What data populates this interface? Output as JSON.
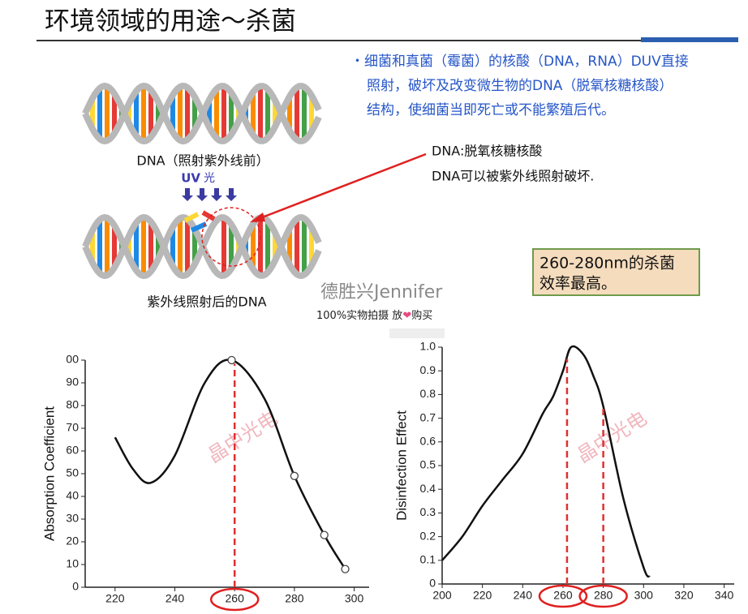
{
  "header": {
    "title": "环境领域的用途～杀菌"
  },
  "bullet": [
    "・细菌和真菌（霉菌）的核酸（DNA，RNA）DUV直接",
    "照射，破坏及改变微生物的DNA（脱氧核糖核酸）",
    "结构，使细菌当即死亡或不能繁殖后代。"
  ],
  "dna": {
    "before": "DNA（照射紫外线前）",
    "uv": "UV",
    "uv_light": "光",
    "after": "紫外线照射后的DNA"
  },
  "note": [
    "DNA:脱氧核糖核酸",
    "DNA可以被紫外线照射破坏."
  ],
  "callout": [
    "260-280nm的杀菌",
    "效率最高。"
  ],
  "watermark": {
    "brand": "德胜兴Jennifer",
    "line_before": "100%实物拍摄 放",
    "heart": "❤",
    "line_after": "购买"
  },
  "chart_watermark": "晶中光电",
  "chart_data": [
    {
      "type": "line",
      "y_label": "Absorption Coefficient",
      "x": [
        220,
        226,
        232,
        240,
        250,
        259,
        270,
        280,
        290,
        297
      ],
      "series": [
        {
          "color": "#111111",
          "values": [
            66,
            52,
            46,
            58,
            90,
            100,
            83,
            49,
            23,
            8
          ]
        }
      ],
      "markers": {
        "x": [
          259,
          280,
          290,
          297
        ],
        "values": [
          100,
          49,
          23,
          8
        ]
      },
      "reference_x": [
        260
      ],
      "reference_color": "#e03030",
      "highlight_ticks": [
        260
      ],
      "xlim": [
        210,
        305
      ],
      "ylim": [
        0,
        100
      ],
      "xticks": [
        220,
        240,
        260,
        280,
        300
      ],
      "yticks": [
        0,
        10,
        20,
        30,
        40,
        50,
        60,
        70,
        80,
        90,
        {
          "value": 100,
          "label": "00"
        }
      ]
    },
    {
      "type": "line",
      "y_label": "Disinfection Effect",
      "x": [
        200,
        210,
        220,
        230,
        240,
        250,
        255,
        260,
        264,
        270,
        275,
        280,
        290,
        300,
        303
      ],
      "series": [
        {
          "color": "#111111",
          "values": [
            0.1,
            0.2,
            0.33,
            0.44,
            0.55,
            0.72,
            0.79,
            0.9,
            1.0,
            0.97,
            0.88,
            0.75,
            0.36,
            0.07,
            0.03
          ]
        }
      ],
      "reference_x": [
        262,
        280
      ],
      "reference_color": "#e03030",
      "highlight_ticks": [
        260,
        280
      ],
      "xlim": [
        200,
        345
      ],
      "ylim": [
        0,
        1
      ],
      "xticks": [
        200,
        220,
        240,
        260,
        280,
        300,
        320,
        340
      ],
      "yticks": [
        0,
        0.1,
        0.2,
        0.3,
        0.4,
        0.5,
        0.6,
        0.7,
        0.8,
        0.9,
        {
          "value": 1,
          "label": "1.0"
        }
      ]
    }
  ]
}
